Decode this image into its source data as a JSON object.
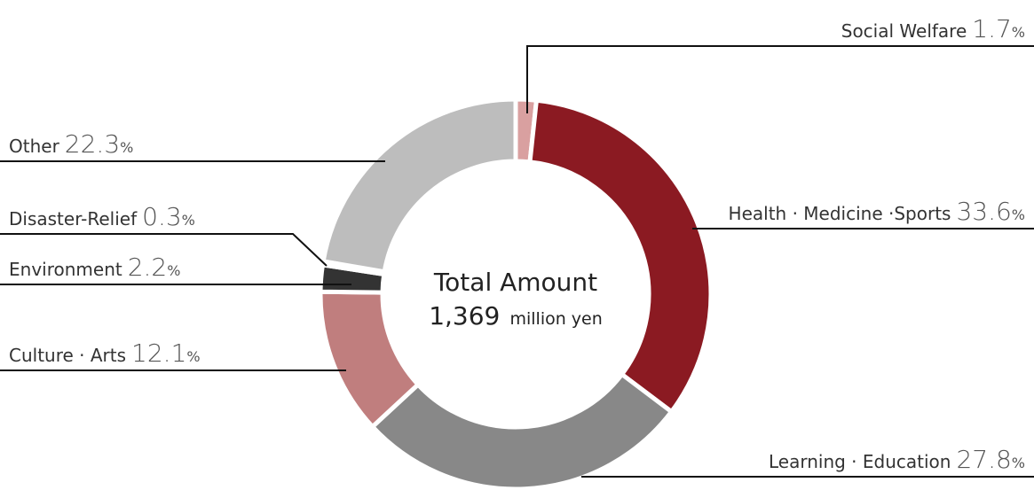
{
  "chart_data": {
    "type": "pie",
    "variant": "donut",
    "start": "top",
    "direction": "clockwise",
    "center": {
      "title": "Total Amount",
      "amount": "1,369",
      "unit": "million yen"
    },
    "slices": [
      {
        "key": "social-welfare",
        "name": "Social Welfare",
        "value": 1.7,
        "value_label": "1.7",
        "unit": "%",
        "color": "#d9a0a0"
      },
      {
        "key": "health-medicine-sports",
        "name": "Health · Medicine ·Sports",
        "value": 33.6,
        "value_label": "33.6",
        "unit": "%",
        "color": "#8b1a22"
      },
      {
        "key": "learning-education",
        "name": "Learning · Education",
        "value": 27.8,
        "value_label": "27.8",
        "unit": "%",
        "color": "#888888"
      },
      {
        "key": "culture-arts",
        "name": "Culture · Arts",
        "value": 12.1,
        "value_label": "12.1",
        "unit": "%",
        "color": "#c07e7e"
      },
      {
        "key": "environment",
        "name": "Environment",
        "value": 2.2,
        "value_label": "2.2",
        "unit": "%",
        "color": "#333333"
      },
      {
        "key": "disaster-relief",
        "name": "Disaster-Relief",
        "value": 0.3,
        "value_label": "0.3",
        "unit": "%",
        "color": "#555555"
      },
      {
        "key": "other",
        "name": "Other",
        "value": 22.3,
        "value_label": "22.3",
        "unit": "%",
        "color": "#bdbdbd"
      }
    ]
  }
}
